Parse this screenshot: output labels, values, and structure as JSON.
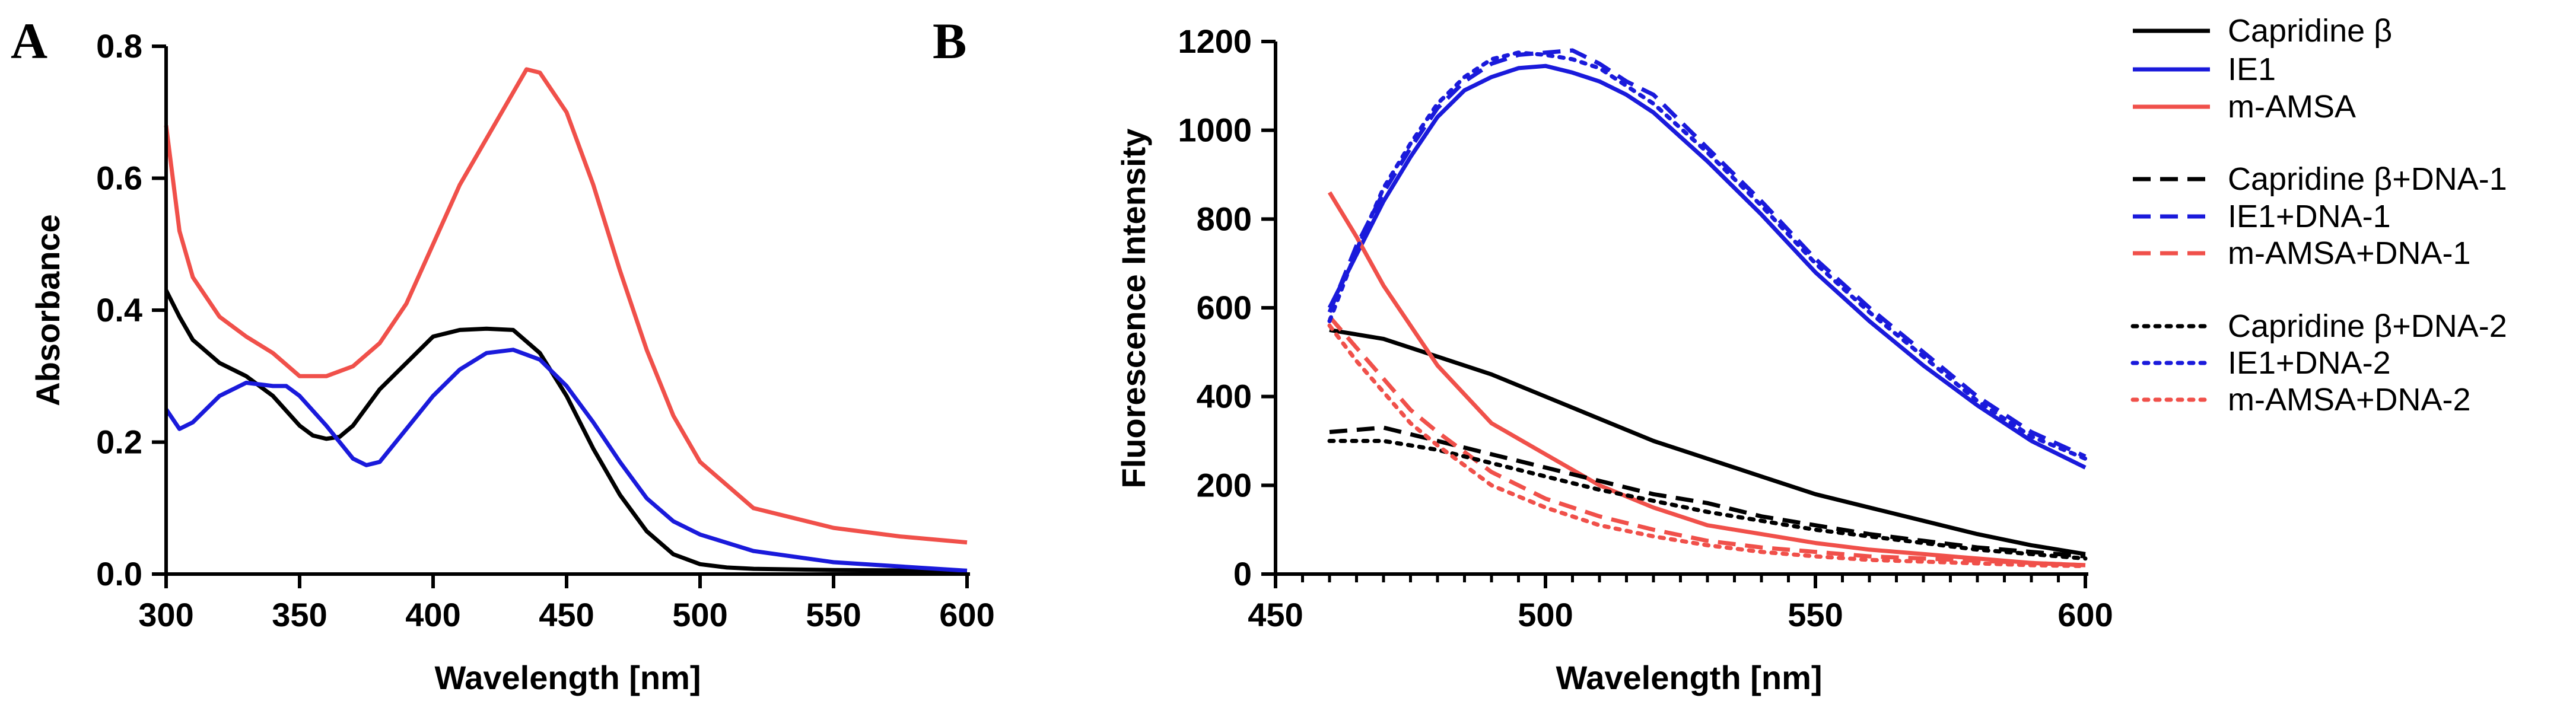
{
  "colors": {
    "black": "#000000",
    "blue": "#1a1adb",
    "red": "#f0504a"
  },
  "legend": {
    "entries": [
      {
        "label": "Capridine β",
        "color": "#000000",
        "dash": "solid"
      },
      {
        "label": "IE1",
        "color": "#1a1adb",
        "dash": "solid"
      },
      {
        "label": "m-AMSA",
        "color": "#f0504a",
        "dash": "solid"
      },
      {
        "label": "Capridine β+DNA-1",
        "color": "#000000",
        "dash": "dashed"
      },
      {
        "label": "IE1+DNA-1",
        "color": "#1a1adb",
        "dash": "dashed"
      },
      {
        "label": "m-AMSA+DNA-1",
        "color": "#f0504a",
        "dash": "dashed"
      },
      {
        "label": "Capridine β+DNA-2",
        "color": "#000000",
        "dash": "dotted"
      },
      {
        "label": "IE1+DNA-2",
        "color": "#1a1adb",
        "dash": "dotted"
      },
      {
        "label": "m-AMSA+DNA-2",
        "color": "#f0504a",
        "dash": "dotted"
      }
    ],
    "position": "right"
  },
  "chart_data": [
    {
      "panel": "A",
      "type": "line",
      "title": "",
      "xlabel": "Wavelength [nm]",
      "ylabel": "Absorbance",
      "xlim": [
        300,
        600
      ],
      "ylim": [
        0,
        0.8
      ],
      "xticks": [
        "300",
        "350",
        "400",
        "450",
        "500",
        "550",
        "600"
      ],
      "yticks": [
        "0.0",
        "0.2",
        "0.4",
        "0.6",
        "0.8"
      ],
      "grid": false,
      "series": [
        {
          "name": "Capridine β",
          "color": "#000000",
          "dash": "solid",
          "x": [
            300,
            305,
            310,
            320,
            330,
            340,
            350,
            355,
            360,
            365,
            370,
            380,
            390,
            400,
            410,
            420,
            430,
            440,
            450,
            460,
            470,
            480,
            490,
            500,
            510,
            520,
            550,
            600
          ],
          "y": [
            0.43,
            0.39,
            0.355,
            0.32,
            0.3,
            0.27,
            0.225,
            0.21,
            0.205,
            0.208,
            0.225,
            0.28,
            0.32,
            0.36,
            0.37,
            0.372,
            0.37,
            0.335,
            0.27,
            0.19,
            0.12,
            0.065,
            0.03,
            0.015,
            0.01,
            0.008,
            0.006,
            0.005
          ]
        },
        {
          "name": "IE1",
          "color": "#1a1adb",
          "dash": "solid",
          "x": [
            300,
            305,
            310,
            320,
            330,
            340,
            345,
            350,
            360,
            370,
            375,
            380,
            390,
            400,
            410,
            420,
            430,
            440,
            450,
            460,
            470,
            480,
            490,
            500,
            520,
            550,
            600
          ],
          "y": [
            0.25,
            0.22,
            0.23,
            0.27,
            0.29,
            0.285,
            0.285,
            0.27,
            0.225,
            0.175,
            0.165,
            0.17,
            0.22,
            0.27,
            0.31,
            0.335,
            0.34,
            0.325,
            0.285,
            0.23,
            0.17,
            0.115,
            0.08,
            0.06,
            0.035,
            0.018,
            0.005
          ]
        },
        {
          "name": "m-AMSA",
          "color": "#f0504a",
          "dash": "solid",
          "x": [
            300,
            305,
            310,
            320,
            330,
            340,
            350,
            360,
            370,
            380,
            390,
            400,
            410,
            420,
            430,
            435,
            440,
            450,
            460,
            470,
            480,
            490,
            500,
            520,
            550,
            575,
            600
          ],
          "y": [
            0.68,
            0.52,
            0.45,
            0.39,
            0.36,
            0.335,
            0.3,
            0.3,
            0.315,
            0.35,
            0.41,
            0.5,
            0.59,
            0.66,
            0.73,
            0.765,
            0.76,
            0.7,
            0.59,
            0.46,
            0.34,
            0.24,
            0.17,
            0.1,
            0.07,
            0.057,
            0.048
          ]
        }
      ]
    },
    {
      "panel": "B",
      "type": "line",
      "title": "",
      "xlabel": "Wavelength [nm]",
      "ylabel": "Fluorescence Intensity",
      "xlim": [
        450,
        600
      ],
      "ylim": [
        0,
        1200
      ],
      "xticks": [
        "450",
        "500",
        "550",
        "600"
      ],
      "yticks": [
        "0",
        "200",
        "400",
        "600",
        "800",
        "1000",
        "1200"
      ],
      "grid": false,
      "series": [
        {
          "name": "Capridine β",
          "color": "#000000",
          "dash": "solid",
          "x": [
            460,
            470,
            480,
            490,
            500,
            510,
            520,
            530,
            540,
            550,
            560,
            570,
            580,
            590,
            600
          ],
          "y": [
            550,
            530,
            490,
            450,
            400,
            350,
            300,
            260,
            220,
            180,
            150,
            120,
            90,
            65,
            45
          ]
        },
        {
          "name": "IE1",
          "color": "#1a1adb",
          "dash": "solid",
          "x": [
            460,
            465,
            470,
            475,
            480,
            485,
            490,
            495,
            500,
            505,
            510,
            515,
            520,
            530,
            540,
            550,
            560,
            570,
            580,
            590,
            600
          ],
          "y": [
            600,
            720,
            840,
            940,
            1030,
            1090,
            1120,
            1140,
            1145,
            1130,
            1110,
            1080,
            1040,
            930,
            810,
            680,
            570,
            470,
            380,
            300,
            240
          ]
        },
        {
          "name": "m-AMSA",
          "color": "#f0504a",
          "dash": "solid",
          "x": [
            460,
            465,
            470,
            475,
            480,
            490,
            500,
            510,
            520,
            530,
            540,
            550,
            560,
            570,
            580,
            590,
            600
          ],
          "y": [
            860,
            760,
            650,
            560,
            470,
            340,
            270,
            200,
            150,
            110,
            90,
            70,
            55,
            45,
            35,
            25,
            20
          ]
        },
        {
          "name": "Capridine β+DNA-1",
          "color": "#000000",
          "dash": "dashed",
          "x": [
            460,
            470,
            480,
            490,
            500,
            510,
            520,
            530,
            540,
            550,
            560,
            570,
            580,
            590,
            600
          ],
          "y": [
            320,
            330,
            300,
            270,
            240,
            210,
            180,
            160,
            130,
            110,
            90,
            75,
            60,
            50,
            40
          ]
        },
        {
          "name": "IE1+DNA-1",
          "color": "#1a1adb",
          "dash": "dashed",
          "x": [
            460,
            465,
            470,
            475,
            480,
            485,
            490,
            495,
            500,
            505,
            510,
            515,
            520,
            530,
            540,
            550,
            560,
            570,
            580,
            590,
            600
          ],
          "y": [
            590,
            740,
            860,
            960,
            1050,
            1110,
            1150,
            1170,
            1175,
            1180,
            1150,
            1110,
            1080,
            960,
            840,
            710,
            600,
            500,
            400,
            320,
            265
          ]
        },
        {
          "name": "m-AMSA+DNA-1",
          "color": "#f0504a",
          "dash": "dashed",
          "x": [
            460,
            465,
            470,
            475,
            480,
            490,
            500,
            510,
            520,
            530,
            540,
            550,
            560,
            570,
            580,
            590,
            600
          ],
          "y": [
            580,
            510,
            440,
            370,
            320,
            230,
            170,
            130,
            100,
            75,
            60,
            50,
            40,
            35,
            30,
            25,
            20
          ]
        },
        {
          "name": "Capridine β+DNA-2",
          "color": "#000000",
          "dash": "dotted",
          "x": [
            460,
            470,
            480,
            490,
            500,
            510,
            520,
            530,
            540,
            550,
            560,
            570,
            580,
            590,
            600
          ],
          "y": [
            300,
            300,
            280,
            250,
            220,
            190,
            165,
            140,
            120,
            100,
            85,
            70,
            55,
            45,
            35
          ]
        },
        {
          "name": "IE1+DNA-2",
          "color": "#1a1adb",
          "dash": "dotted",
          "x": [
            460,
            465,
            470,
            475,
            480,
            485,
            490,
            495,
            500,
            505,
            510,
            515,
            520,
            530,
            540,
            550,
            560,
            570,
            580,
            590,
            600
          ],
          "y": [
            570,
            730,
            870,
            970,
            1060,
            1120,
            1160,
            1175,
            1170,
            1160,
            1140,
            1100,
            1060,
            950,
            830,
            700,
            590,
            490,
            390,
            310,
            260
          ]
        },
        {
          "name": "m-AMSA+DNA-2",
          "color": "#f0504a",
          "dash": "dotted",
          "x": [
            460,
            465,
            470,
            475,
            480,
            490,
            500,
            510,
            520,
            530,
            540,
            550,
            560,
            570,
            580,
            590,
            600
          ],
          "y": [
            560,
            480,
            410,
            340,
            290,
            200,
            150,
            110,
            85,
            65,
            50,
            40,
            32,
            28,
            24,
            20,
            18
          ]
        }
      ]
    }
  ]
}
